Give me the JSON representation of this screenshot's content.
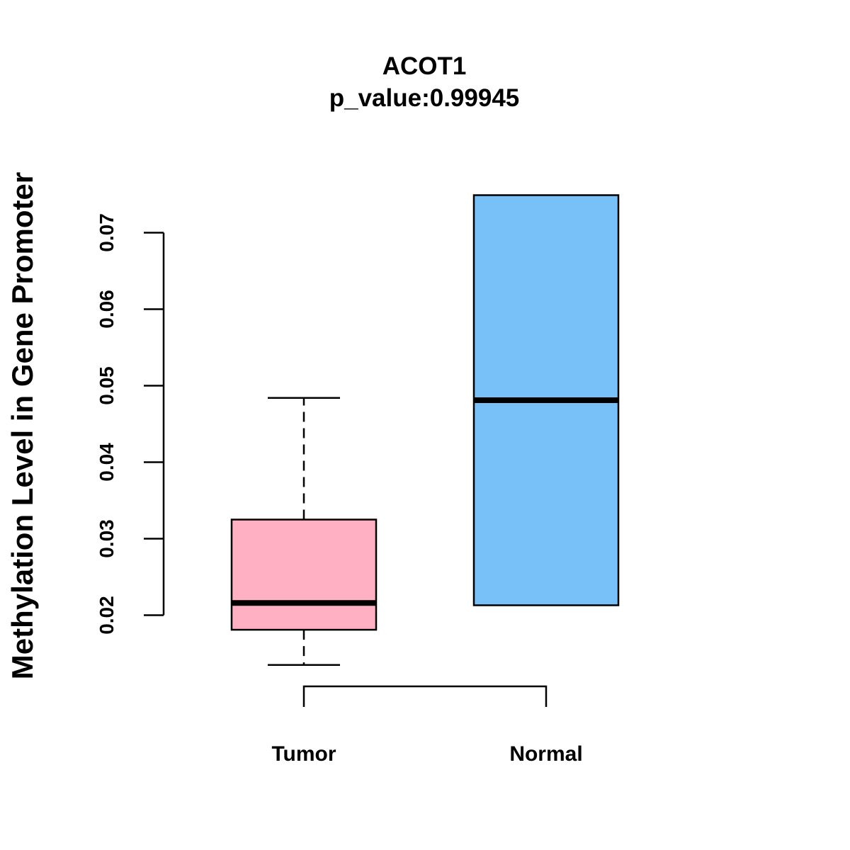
{
  "chart_data": {
    "type": "boxplot",
    "title": "ACOT1",
    "subtitle": "p_value:0.99945",
    "xlabel": "",
    "ylabel": "Methylation Level in Gene Promoter",
    "categories": [
      "Tumor",
      "Normal"
    ],
    "ylim": [
      0.0132,
      0.0768
    ],
    "yticks": [
      0.02,
      0.03,
      0.04,
      0.05,
      0.06,
      0.07
    ],
    "ytick_labels": [
      "0.02",
      "0.03",
      "0.04",
      "0.05",
      "0.06",
      "0.07"
    ],
    "boxes": [
      {
        "name": "Tumor",
        "whisker_low": 0.0135,
        "q1": 0.0181,
        "median": 0.0216,
        "q3": 0.0325,
        "whisker_high": 0.0484,
        "fill": "#FFB0C2"
      },
      {
        "name": "Normal",
        "whisker_low": 0.0213,
        "q1": 0.0213,
        "median": 0.0481,
        "q3": 0.0749,
        "whisker_high": 0.0749,
        "fill": "#78C0F8"
      }
    ],
    "grid": false,
    "legend": "none"
  }
}
